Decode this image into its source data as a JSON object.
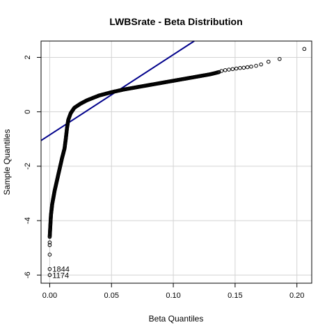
{
  "chart_data": {
    "type": "scatter",
    "title": "LWBSrate - Beta Distribution",
    "xlabel": "Beta Quantiles",
    "ylabel": "Sample Quantiles",
    "xlim": [
      -0.007,
      0.212
    ],
    "ylim": [
      -6.3,
      2.6
    ],
    "x_ticks": [
      0.0,
      0.05,
      0.1,
      0.15,
      0.2
    ],
    "x_tick_labels": [
      "0.00",
      "0.05",
      "0.10",
      "0.15",
      "0.20"
    ],
    "y_ticks": [
      -6,
      -4,
      -2,
      0,
      2
    ],
    "y_tick_labels": [
      "-6",
      "-4",
      "-2",
      "0",
      "2"
    ],
    "grid": true,
    "colors": {
      "points": "#000000",
      "reference_line": "#00008b",
      "grid": "#d3d3d3"
    },
    "reference_line": {
      "intercept": -0.85,
      "slope": 29.5
    },
    "curve_series": [
      {
        "x": 0.0,
        "y": -4.6
      },
      {
        "x": 0.001,
        "y": -3.8
      },
      {
        "x": 0.002,
        "y": -3.4
      },
      {
        "x": 0.004,
        "y": -2.9
      },
      {
        "x": 0.006,
        "y": -2.5
      },
      {
        "x": 0.008,
        "y": -2.1
      },
      {
        "x": 0.01,
        "y": -1.7
      },
      {
        "x": 0.012,
        "y": -1.35
      },
      {
        "x": 0.013,
        "y": -1.0
      },
      {
        "x": 0.014,
        "y": -0.6
      },
      {
        "x": 0.015,
        "y": -0.3
      },
      {
        "x": 0.017,
        "y": -0.05
      },
      {
        "x": 0.02,
        "y": 0.15
      },
      {
        "x": 0.025,
        "y": 0.3
      },
      {
        "x": 0.03,
        "y": 0.42
      },
      {
        "x": 0.04,
        "y": 0.6
      },
      {
        "x": 0.05,
        "y": 0.72
      },
      {
        "x": 0.06,
        "y": 0.82
      },
      {
        "x": 0.07,
        "y": 0.9
      },
      {
        "x": 0.08,
        "y": 0.98
      },
      {
        "x": 0.09,
        "y": 1.06
      },
      {
        "x": 0.1,
        "y": 1.14
      },
      {
        "x": 0.11,
        "y": 1.22
      },
      {
        "x": 0.12,
        "y": 1.3
      },
      {
        "x": 0.13,
        "y": 1.38
      },
      {
        "x": 0.137,
        "y": 1.46
      }
    ],
    "sparse_points": [
      {
        "x": 0.139,
        "y": 1.5
      },
      {
        "x": 0.142,
        "y": 1.53
      },
      {
        "x": 0.145,
        "y": 1.55
      },
      {
        "x": 0.148,
        "y": 1.57
      },
      {
        "x": 0.151,
        "y": 1.59
      },
      {
        "x": 0.154,
        "y": 1.61
      },
      {
        "x": 0.157,
        "y": 1.62
      },
      {
        "x": 0.16,
        "y": 1.64
      },
      {
        "x": 0.163,
        "y": 1.66
      },
      {
        "x": 0.167,
        "y": 1.69
      },
      {
        "x": 0.171,
        "y": 1.74
      },
      {
        "x": 0.177,
        "y": 1.84
      },
      {
        "x": 0.186,
        "y": 1.94
      },
      {
        "x": 0.206,
        "y": 2.31
      },
      {
        "x": 0.0,
        "y": -4.8
      },
      {
        "x": 0.0,
        "y": -4.9
      },
      {
        "x": 0.0,
        "y": -5.25
      }
    ],
    "labeled_points": [
      {
        "x": 0.0,
        "y": -5.78,
        "label": "1844"
      },
      {
        "x": 0.0,
        "y": -6.0,
        "label": "1174"
      }
    ]
  }
}
